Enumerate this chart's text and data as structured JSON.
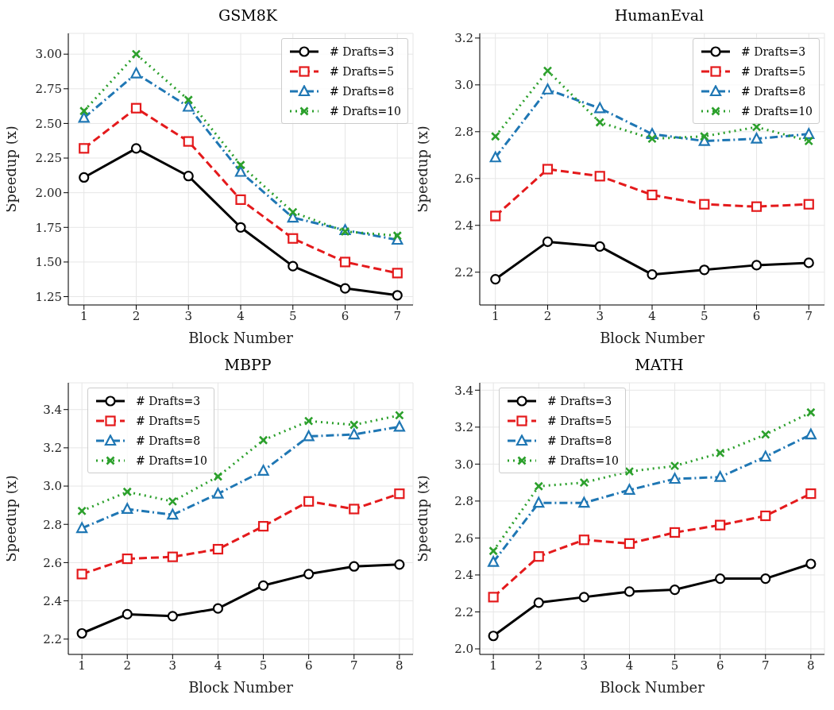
{
  "chart_data": [
    {
      "type": "line",
      "title": "GSM8K",
      "xlabel": "Block Number",
      "ylabel": "Speedup (x)",
      "x": [
        1,
        2,
        3,
        4,
        5,
        6,
        7
      ],
      "xlim": [
        0.7,
        7.3
      ],
      "xticks": [
        1,
        2,
        3,
        4,
        5,
        6,
        7
      ],
      "ylim": [
        1.19,
        3.15
      ],
      "yticks": [
        1.25,
        {
          "value": 1.5,
          "label": "1.50"
        },
        1.75,
        {
          "value": 2,
          "label": "2.00"
        },
        2.25,
        {
          "value": 2.5,
          "label": "2.50"
        },
        2.75,
        {
          "value": 3,
          "label": "3.00"
        }
      ],
      "grid": true,
      "legend": "top right",
      "series": [
        {
          "name": "# Drafts=3",
          "color": "#000000",
          "marker": "circle",
          "line_style": "solid",
          "values": [
            2.11,
            2.32,
            2.12,
            1.75,
            1.47,
            1.31,
            1.26
          ]
        },
        {
          "name": "# Drafts=5",
          "color": "#e41a1c",
          "marker": "square",
          "line_style": "dashed",
          "values": [
            2.32,
            2.61,
            2.37,
            1.95,
            1.67,
            1.5,
            1.42
          ]
        },
        {
          "name": "# Drafts=8",
          "color": "#1f77b4",
          "marker": "triangle",
          "line_style": "dashdot",
          "values": [
            2.54,
            2.86,
            2.62,
            2.15,
            1.82,
            1.73,
            1.66
          ]
        },
        {
          "name": "# Drafts=10",
          "color": "#2ca02c",
          "marker": "cross",
          "line_style": "dotted",
          "values": [
            2.59,
            3.0,
            2.67,
            2.2,
            1.86,
            1.72,
            1.69
          ]
        }
      ]
    },
    {
      "type": "line",
      "title": "HumanEval",
      "xlabel": "Block Number",
      "ylabel": "Speedup (x)",
      "x": [
        1,
        2,
        3,
        4,
        5,
        6,
        7
      ],
      "xlim": [
        0.7,
        7.3
      ],
      "xticks": [
        1,
        2,
        3,
        4,
        5,
        6,
        7
      ],
      "ylim": [
        2.06,
        3.22
      ],
      "yticks": [
        2.2,
        2.4,
        2.6,
        2.8,
        {
          "value": 3,
          "label": "3.0"
        },
        3.2
      ],
      "grid": true,
      "legend": "top right",
      "series": [
        {
          "name": "# Drafts=3",
          "color": "#000000",
          "marker": "circle",
          "line_style": "solid",
          "values": [
            2.17,
            2.33,
            2.31,
            2.19,
            2.21,
            2.23,
            2.24
          ]
        },
        {
          "name": "# Drafts=5",
          "color": "#e41a1c",
          "marker": "square",
          "line_style": "dashed",
          "values": [
            2.44,
            2.64,
            2.61,
            2.53,
            2.49,
            2.48,
            2.49
          ]
        },
        {
          "name": "# Drafts=8",
          "color": "#1f77b4",
          "marker": "triangle",
          "line_style": "dashdot",
          "values": [
            2.69,
            2.98,
            2.9,
            2.79,
            2.76,
            2.77,
            2.79
          ]
        },
        {
          "name": "# Drafts=10",
          "color": "#2ca02c",
          "marker": "cross",
          "line_style": "dotted",
          "values": [
            2.78,
            3.06,
            2.84,
            2.77,
            2.78,
            2.82,
            2.76
          ]
        }
      ]
    },
    {
      "type": "line",
      "title": "MBPP",
      "xlabel": "Block Number",
      "ylabel": "Speedup (x)",
      "x": [
        1,
        2,
        3,
        4,
        5,
        6,
        7,
        8
      ],
      "xlim": [
        0.7,
        8.3
      ],
      "xticks": [
        1,
        2,
        3,
        4,
        5,
        6,
        7,
        8
      ],
      "ylim": [
        2.12,
        3.54
      ],
      "yticks": [
        2.2,
        2.4,
        2.6,
        2.8,
        {
          "value": 3,
          "label": "3.0"
        },
        3.2,
        3.4
      ],
      "grid": true,
      "legend": "top left",
      "series": [
        {
          "name": "# Drafts=3",
          "color": "#000000",
          "marker": "circle",
          "line_style": "solid",
          "values": [
            2.23,
            2.33,
            2.32,
            2.36,
            2.48,
            2.54,
            2.58,
            2.59
          ]
        },
        {
          "name": "# Drafts=5",
          "color": "#e41a1c",
          "marker": "square",
          "line_style": "dashed",
          "values": [
            2.54,
            2.62,
            2.63,
            2.67,
            2.79,
            2.92,
            2.88,
            2.96
          ]
        },
        {
          "name": "# Drafts=8",
          "color": "#1f77b4",
          "marker": "triangle",
          "line_style": "dashdot",
          "values": [
            2.78,
            2.88,
            2.85,
            2.96,
            3.08,
            3.26,
            3.27,
            3.31
          ]
        },
        {
          "name": "# Drafts=10",
          "color": "#2ca02c",
          "marker": "cross",
          "line_style": "dotted",
          "values": [
            2.87,
            2.97,
            2.92,
            3.05,
            3.24,
            3.34,
            3.32,
            3.37
          ]
        }
      ]
    },
    {
      "type": "line",
      "title": "MATH",
      "xlabel": "Block Number",
      "ylabel": "Speedup (x)",
      "x": [
        1,
        2,
        3,
        4,
        5,
        6,
        7,
        8
      ],
      "xlim": [
        0.7,
        8.3
      ],
      "xticks": [
        1,
        2,
        3,
        4,
        5,
        6,
        7,
        8
      ],
      "ylim": [
        1.97,
        3.44
      ],
      "yticks": [
        {
          "value": 2,
          "label": "2.0"
        },
        2.2,
        2.4,
        2.6,
        2.8,
        {
          "value": 3,
          "label": "3.0"
        },
        3.2,
        3.4
      ],
      "grid": true,
      "legend": "top left",
      "series": [
        {
          "name": "# Drafts=3",
          "color": "#000000",
          "marker": "circle",
          "line_style": "solid",
          "values": [
            2.07,
            2.25,
            2.28,
            2.31,
            2.32,
            2.38,
            2.38,
            2.46
          ]
        },
        {
          "name": "# Drafts=5",
          "color": "#e41a1c",
          "marker": "square",
          "line_style": "dashed",
          "values": [
            2.28,
            2.5,
            2.59,
            2.57,
            2.63,
            2.67,
            2.72,
            2.84
          ]
        },
        {
          "name": "# Drafts=8",
          "color": "#1f77b4",
          "marker": "triangle",
          "line_style": "dashdot",
          "values": [
            2.47,
            2.79,
            2.79,
            2.86,
            2.92,
            2.93,
            3.04,
            3.16
          ]
        },
        {
          "name": "# Drafts=10",
          "color": "#2ca02c",
          "marker": "cross",
          "line_style": "dotted",
          "values": [
            2.53,
            2.88,
            2.9,
            2.96,
            2.99,
            3.06,
            3.16,
            3.28
          ]
        }
      ]
    }
  ]
}
